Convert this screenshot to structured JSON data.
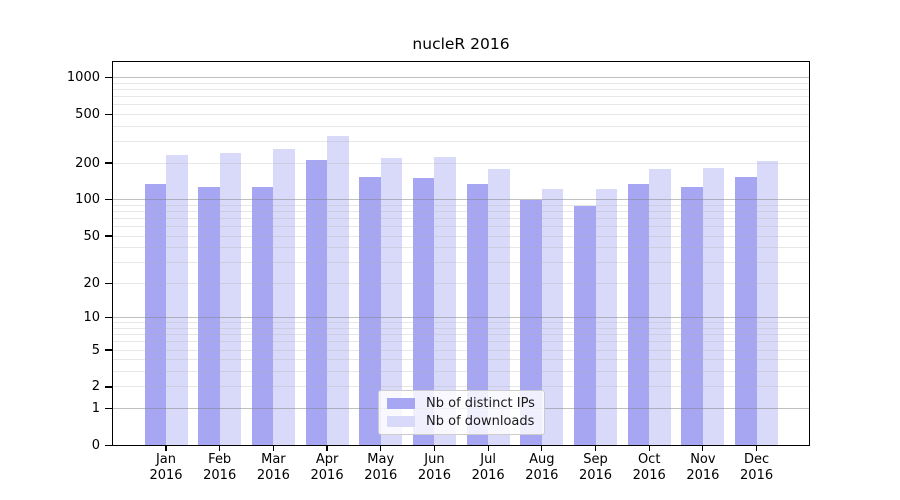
{
  "title": "nucleR 2016",
  "colors": {
    "distinct_ips": "#a6a6f2",
    "downloads": "#d9d9f9",
    "major_grid": "rgba(130,130,130,0.5)",
    "minor_grid": "rgba(175,175,175,0.3)",
    "axis": "#000000"
  },
  "chart_data": {
    "type": "bar",
    "title": "nucleR 2016",
    "y_scale": "log1p",
    "categories": [
      "Jan 2016",
      "Feb 2016",
      "Mar 2016",
      "Apr 2016",
      "May 2016",
      "Jun 2016",
      "Jul 2016",
      "Aug 2016",
      "Sep 2016",
      "Oct 2016",
      "Nov 2016",
      "Dec 2016"
    ],
    "series": [
      {
        "name": "Nb of distinct IPs",
        "color": "#a6a6f2",
        "values": [
          135,
          126,
          128,
          213,
          155,
          150,
          135,
          100,
          89,
          134,
          126,
          155
        ]
      },
      {
        "name": "Nb of downloads",
        "color": "#d9d9f9",
        "values": [
          234,
          243,
          262,
          331,
          219,
          224,
          178,
          123,
          123,
          180,
          181,
          207
        ]
      }
    ],
    "xlabel": "",
    "ylabel": "",
    "y_ticks": [
      0,
      1,
      2,
      5,
      10,
      20,
      50,
      100,
      200,
      500,
      1000
    ],
    "ylim": [
      0,
      1365
    ],
    "grid": "horizontal major and minor (log), drawn over bars",
    "legend_position": "lower center inside plot"
  }
}
